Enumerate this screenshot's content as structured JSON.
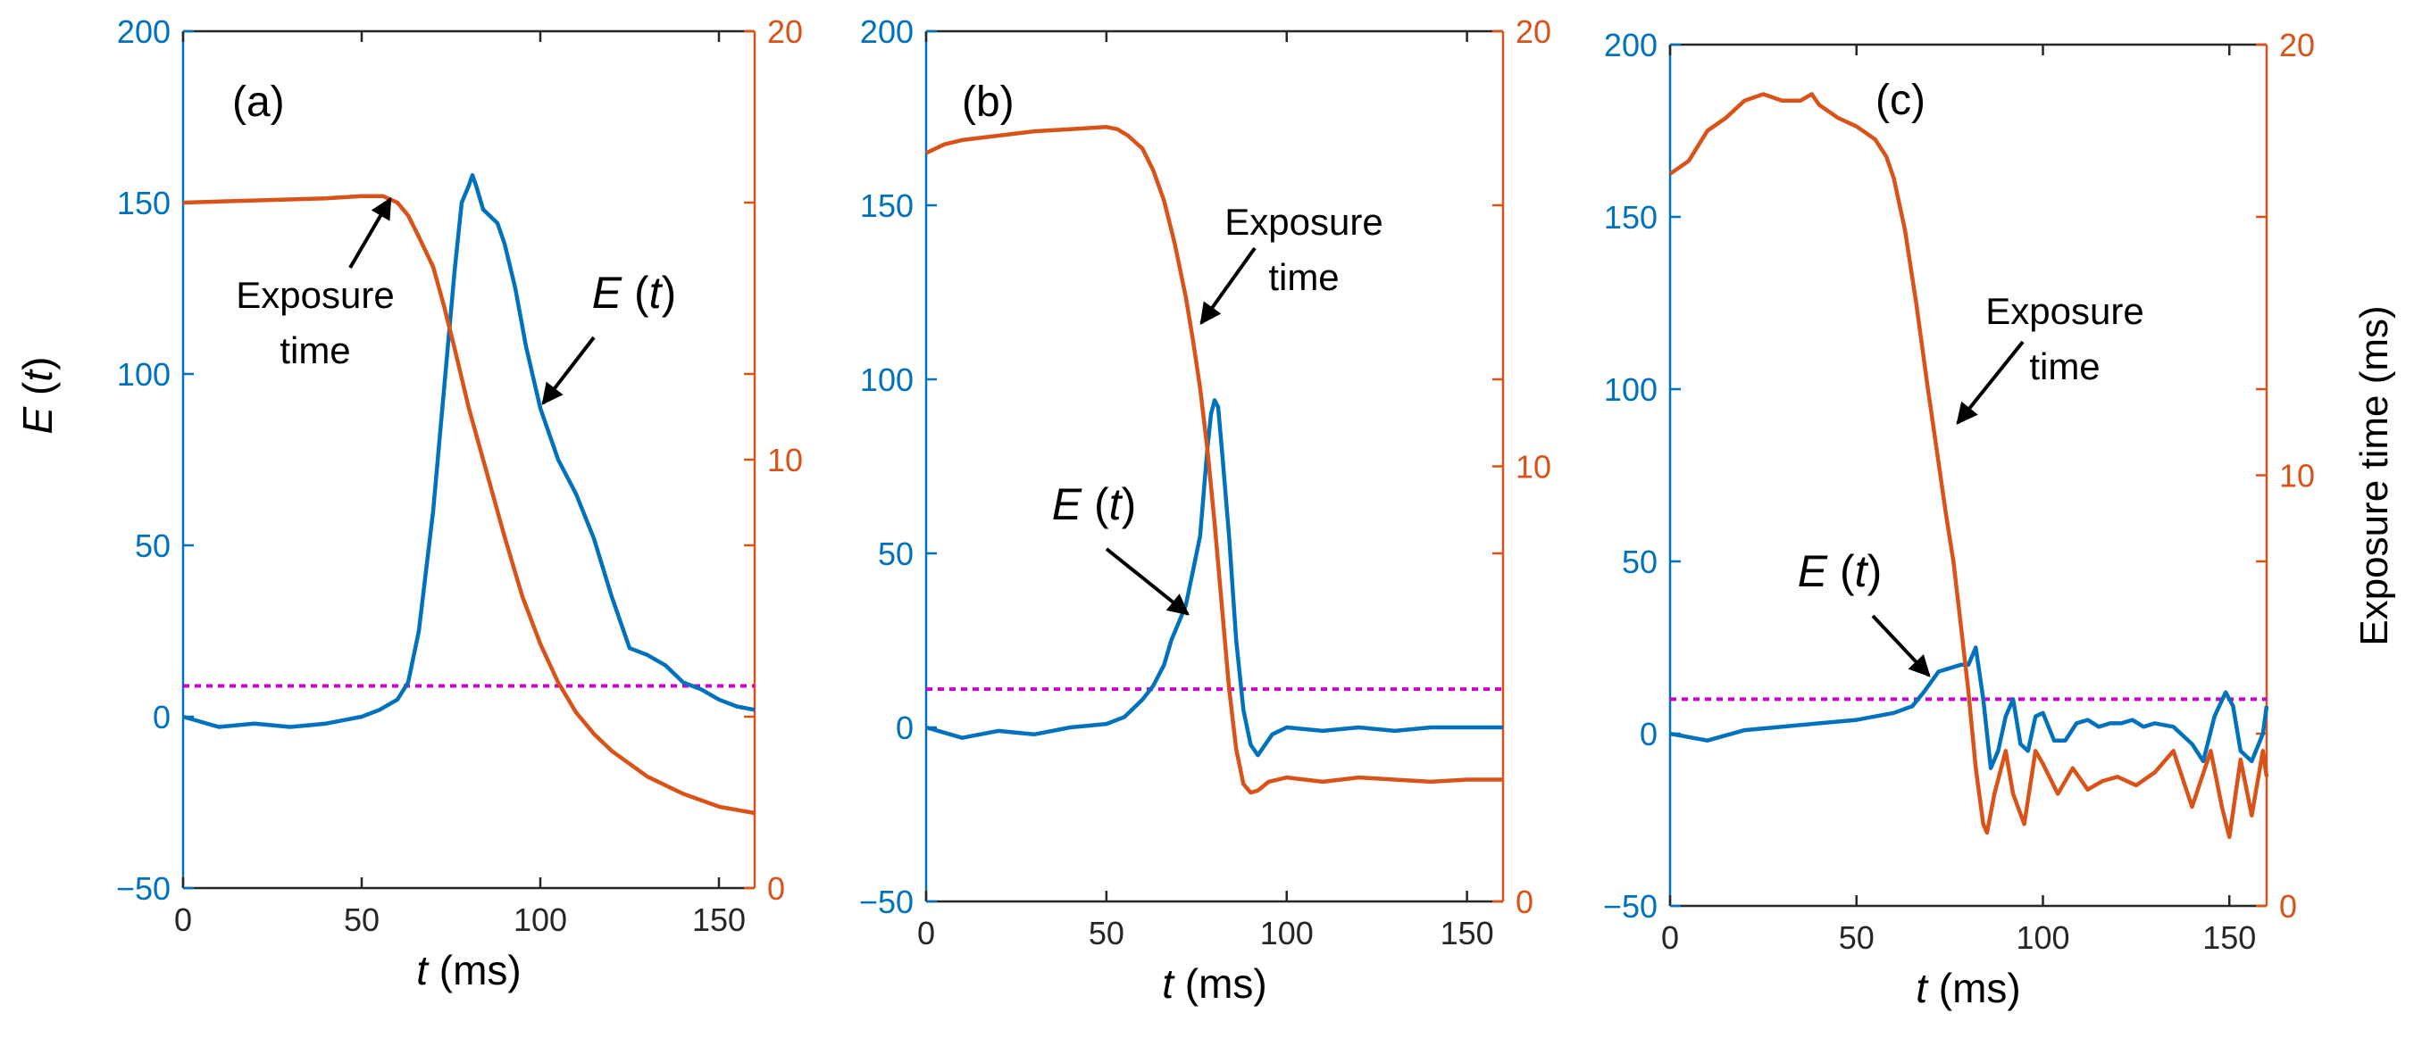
{
  "figure": {
    "left_ylabel_E": "E",
    "left_ylabel_t": "t",
    "right_ylabel": "Exposure time (ms)",
    "colors": {
      "E": "#0072BD",
      "exposure": "#D95319",
      "threshold": "#CC00CC",
      "axis": "#262626"
    }
  },
  "chart_data": [
    {
      "type": "line",
      "panel_label": "(a)",
      "xlabel_italic": "t",
      "xlabel_unit": " (ms)",
      "xlim": [
        0,
        160
      ],
      "ylim_left": [
        -50,
        200
      ],
      "ylim_right": [
        0,
        20
      ],
      "x_ticks": [
        0,
        50,
        100,
        150
      ],
      "left_ticks": [
        -50,
        0,
        50,
        100,
        150,
        200
      ],
      "right_ticks": [
        0,
        10,
        20
      ],
      "threshold": 9,
      "series": [
        {
          "axis": "left",
          "color": "#0072BD",
          "x": [
            0,
            10,
            20,
            30,
            40,
            50,
            55,
            60,
            63,
            66,
            70,
            73,
            76,
            78,
            80,
            81,
            82,
            84,
            86,
            88,
            90,
            93,
            96,
            100,
            105,
            110,
            115,
            120,
            125,
            130,
            135,
            140,
            145,
            150,
            155,
            160
          ],
          "y": [
            0,
            -3,
            -2,
            -3,
            -2,
            0,
            2,
            5,
            10,
            25,
            60,
            95,
            130,
            150,
            155,
            158,
            155,
            148,
            146,
            144,
            138,
            125,
            108,
            90,
            75,
            65,
            52,
            35,
            20,
            18,
            15,
            10,
            8,
            5,
            3,
            2
          ]
        },
        {
          "axis": "right",
          "color": "#D95319",
          "x": [
            0,
            20,
            40,
            50,
            56,
            60,
            63,
            66,
            70,
            73,
            76,
            80,
            85,
            90,
            95,
            100,
            105,
            110,
            115,
            120,
            130,
            140,
            150,
            160
          ],
          "y": [
            16.0,
            16.05,
            16.1,
            16.15,
            16.15,
            16.0,
            15.7,
            15.2,
            14.5,
            13.6,
            12.6,
            11.2,
            9.7,
            8.2,
            6.8,
            5.7,
            4.8,
            4.1,
            3.6,
            3.2,
            2.6,
            2.2,
            1.9,
            1.75
          ]
        }
      ],
      "annotations": [
        {
          "lines": [
            "Exposure",
            "time"
          ]
        },
        {
          "italic": "E",
          "rest": " (",
          "italic2": "t",
          "rest2": ")"
        }
      ]
    },
    {
      "type": "line",
      "panel_label": "(b)",
      "xlabel_italic": "t",
      "xlabel_unit": " (ms)",
      "xlim": [
        0,
        160
      ],
      "ylim_left": [
        -50,
        200
      ],
      "ylim_right": [
        0,
        20
      ],
      "x_ticks": [
        0,
        50,
        100,
        150
      ],
      "left_ticks": [
        -50,
        0,
        50,
        100,
        150,
        200
      ],
      "right_ticks": [
        0,
        10,
        20
      ],
      "threshold": 11,
      "series": [
        {
          "axis": "left",
          "color": "#0072BD",
          "x": [
            0,
            10,
            20,
            30,
            40,
            50,
            55,
            60,
            63,
            66,
            68,
            70,
            72,
            74,
            76,
            78,
            79,
            80,
            81,
            82,
            84,
            86,
            88,
            90,
            92,
            94,
            96,
            100,
            110,
            120,
            130,
            140,
            150,
            160
          ],
          "y": [
            0,
            -3,
            -1,
            -2,
            0,
            1,
            3,
            8,
            12,
            18,
            25,
            30,
            35,
            45,
            55,
            80,
            90,
            94,
            92,
            80,
            55,
            25,
            5,
            -5,
            -8,
            -5,
            -2,
            0,
            -1,
            0,
            -1,
            0,
            0,
            0
          ]
        },
        {
          "axis": "right",
          "color": "#D95319",
          "x": [
            0,
            5,
            10,
            20,
            30,
            40,
            50,
            53,
            56,
            60,
            63,
            66,
            69,
            72,
            74,
            76,
            78,
            80,
            82,
            84,
            86,
            88,
            90,
            92,
            95,
            100,
            110,
            120,
            130,
            140,
            150,
            160
          ],
          "y": [
            17.2,
            17.4,
            17.5,
            17.6,
            17.7,
            17.75,
            17.8,
            17.75,
            17.6,
            17.3,
            16.8,
            16.1,
            15.1,
            13.9,
            12.9,
            11.8,
            10.4,
            8.7,
            6.8,
            4.9,
            3.5,
            2.7,
            2.5,
            2.55,
            2.75,
            2.85,
            2.75,
            2.85,
            2.8,
            2.75,
            2.8,
            2.8
          ]
        }
      ],
      "annotations": [
        {
          "lines": [
            "Exposure",
            "time"
          ]
        },
        {
          "italic": "E",
          "rest": " (",
          "italic2": "t",
          "rest2": ")"
        }
      ]
    },
    {
      "type": "line",
      "panel_label": "(c)",
      "xlabel_italic": "t",
      "xlabel_unit": " (ms)",
      "xlim": [
        0,
        160
      ],
      "ylim_left": [
        -50,
        200
      ],
      "ylim_right": [
        0,
        20
      ],
      "x_ticks": [
        0,
        50,
        100,
        150
      ],
      "left_ticks": [
        -50,
        0,
        50,
        100,
        150,
        200
      ],
      "right_ticks": [
        0,
        10,
        20
      ],
      "threshold": 10,
      "series": [
        {
          "axis": "left",
          "color": "#0072BD",
          "x": [
            0,
            10,
            20,
            30,
            40,
            50,
            60,
            65,
            68,
            70,
            72,
            75,
            78,
            80,
            82,
            84,
            86,
            88,
            90,
            92,
            94,
            96,
            98,
            100,
            103,
            106,
            109,
            112,
            115,
            118,
            121,
            124,
            127,
            130,
            135,
            140,
            143,
            146,
            149,
            151,
            153,
            156,
            159,
            160
          ],
          "y": [
            0,
            -2,
            1,
            2,
            3,
            4,
            6,
            8,
            12,
            15,
            18,
            19,
            20,
            20,
            25,
            10,
            -10,
            -5,
            5,
            10,
            -3,
            -5,
            5,
            6,
            -2,
            -2,
            3,
            4,
            2,
            3,
            3,
            4,
            2,
            3,
            2,
            -3,
            -8,
            5,
            12,
            8,
            -5,
            -8,
            0,
            8
          ]
        },
        {
          "axis": "right",
          "color": "#D95319",
          "x": [
            0,
            5,
            10,
            15,
            20,
            25,
            30,
            35,
            38,
            40,
            45,
            50,
            55,
            58,
            60,
            63,
            66,
            69,
            72,
            74,
            76,
            78,
            80,
            82,
            84,
            85,
            87,
            90,
            92,
            95,
            98,
            100,
            104,
            108,
            112,
            116,
            120,
            125,
            130,
            135,
            140,
            145,
            148,
            150,
            153,
            156,
            159,
            160
          ],
          "y": [
            17.0,
            17.3,
            18.0,
            18.3,
            18.7,
            18.85,
            18.7,
            18.7,
            18.85,
            18.6,
            18.3,
            18.1,
            17.8,
            17.4,
            16.9,
            15.7,
            14.0,
            12.1,
            10.3,
            9.1,
            8.0,
            6.5,
            5.0,
            3.2,
            1.9,
            1.7,
            2.6,
            3.6,
            2.6,
            1.9,
            3.6,
            3.3,
            2.6,
            3.2,
            2.7,
            2.9,
            3.0,
            2.8,
            3.1,
            3.6,
            2.3,
            3.6,
            2.3,
            1.6,
            3.4,
            2.1,
            3.6,
            3.0
          ]
        }
      ],
      "annotations": [
        {
          "lines": [
            "Exposure",
            "time"
          ]
        },
        {
          "italic": "E",
          "rest": " (",
          "italic2": "t",
          "rest2": ")"
        }
      ]
    }
  ]
}
